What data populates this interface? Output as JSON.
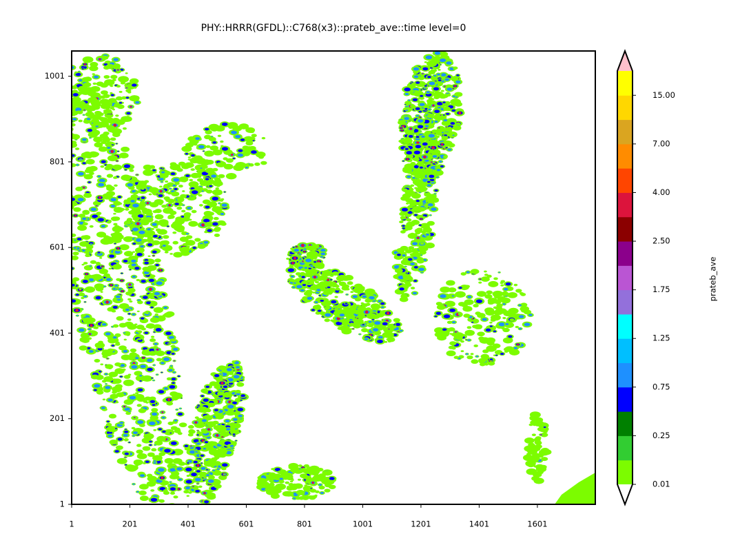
{
  "chart_data": {
    "type": "contour",
    "title": "PHY::HRRR(GFDL)::C768(x3)::prateb_ave::time level=0",
    "xlim": [
      1,
      1800
    ],
    "xticks": [
      1,
      201,
      401,
      601,
      801,
      1001,
      1201,
      1401,
      1601
    ],
    "ylim": [
      1,
      1060
    ],
    "yticks": [
      1,
      201,
      401,
      601,
      801,
      1001
    ],
    "colorbar": {
      "label": "prateb_ave",
      "levels": [
        0.01,
        0.1,
        0.25,
        0.5,
        0.75,
        1.0,
        1.25,
        1.5,
        1.75,
        2.0,
        2.5,
        3.0,
        4.0,
        5.0,
        7.0,
        10.0,
        15.0,
        20.0
      ],
      "colors": [
        "#7cfc00",
        "#32cd32",
        "#008000",
        "#0000ff",
        "#1e90ff",
        "#00bfff",
        "#00ffff",
        "#9370db",
        "#ba55d3",
        "#8b008b",
        "#8b0000",
        "#dc143c",
        "#ff4500",
        "#ff8c00",
        "#daa520",
        "#ffd700",
        "#ffff00"
      ],
      "over_color": "#ffc0cb",
      "under_color": "#ffffff",
      "ticks": [
        0.01,
        0.25,
        0.75,
        1.25,
        1.75,
        {
          "value": 2.5,
          "label": "2.50"
        },
        {
          "value": 4.0,
          "label": "4.00"
        },
        {
          "value": 7.0,
          "label": "7.00"
        },
        {
          "value": 15.0,
          "label": "15.00"
        }
      ]
    }
  }
}
